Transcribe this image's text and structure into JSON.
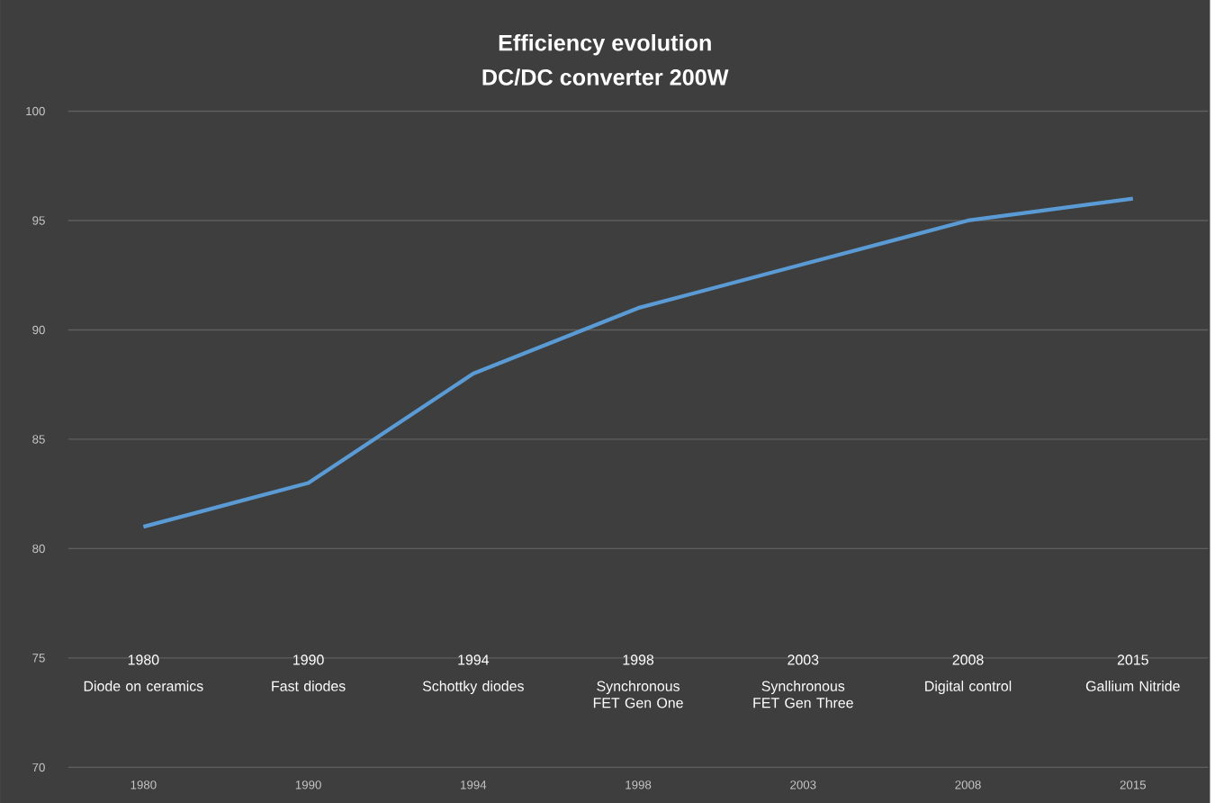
{
  "chart_data": {
    "type": "line",
    "title": "Efficiency  evolution",
    "subtitle": "DC/DC  converter  200W",
    "categories": [
      "1980",
      "1990",
      "1994",
      "1998",
      "2003",
      "2008",
      "2015"
    ],
    "series": [
      {
        "color": "#5b9bd5",
        "values": [
          81,
          83,
          88,
          91,
          93,
          95,
          96
        ]
      }
    ],
    "ylim": [
      70,
      100
    ],
    "yticks": [
      70,
      75,
      80,
      85,
      90,
      95,
      100
    ],
    "grid": "y",
    "annotations": [
      "1980",
      "Diode on ceramics",
      "1990",
      "Fast diodes",
      "1994",
      "Schottky diodes",
      "1998",
      "Synchronous FET Gen One",
      "2003",
      "Synchronous FET Gen  Three",
      "2008",
      "Digital control",
      "2015",
      "Gallium Nitride"
    ]
  }
}
